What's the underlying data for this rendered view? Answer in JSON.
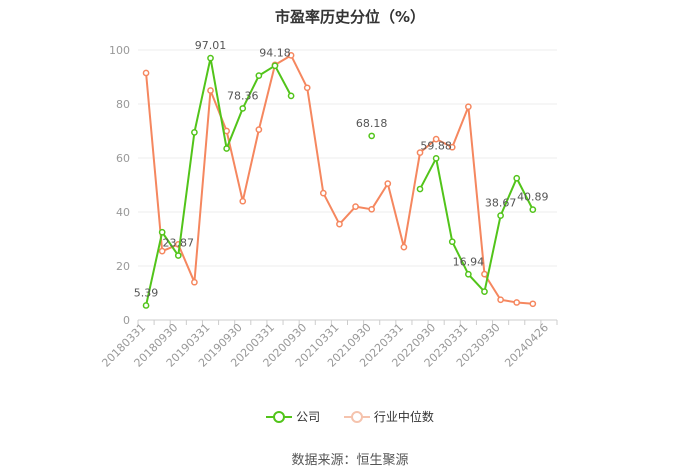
{
  "title": "市盈率历史分位（%）",
  "source": "数据来源：恒生聚源",
  "colors": {
    "company": "#52c41a",
    "industry": "#f5875f",
    "axis": "#999999",
    "grid": "#eeeeee"
  },
  "chart_data": {
    "type": "line",
    "title": "市盈率历史分位（%）",
    "xlabel": "",
    "ylabel": "",
    "ylim": [
      0,
      100
    ],
    "yticks": [
      0,
      20,
      40,
      60,
      80,
      100
    ],
    "grid": true,
    "legend_position": "bottom",
    "categories": [
      "20180331",
      "20180630",
      "20180930",
      "20181231",
      "20190331",
      "20190630",
      "20190930",
      "20191231",
      "20200331",
      "20200630",
      "20200930",
      "20201231",
      "20210331",
      "20210630",
      "20210930",
      "20211231",
      "20220331",
      "20220630",
      "20220930",
      "20221231",
      "20230331",
      "20230630",
      "20230930",
      "20231231",
      "20240331",
      "20240426"
    ],
    "xtick_labels": [
      "20180331",
      "20180930",
      "20190331",
      "20190930",
      "20200331",
      "20200930",
      "20210331",
      "20210930",
      "20220331",
      "20220930",
      "20230331",
      "20230930",
      "20240426"
    ],
    "series": [
      {
        "name": "公司",
        "color": "#52c41a",
        "values": [
          5.39,
          32.5,
          23.87,
          69.5,
          97.01,
          63.5,
          78.36,
          90.5,
          94.18,
          83.0,
          null,
          null,
          null,
          null,
          68.18,
          null,
          null,
          48.5,
          59.88,
          29.0,
          16.94,
          10.5,
          38.67,
          52.5,
          40.89,
          null
        ],
        "labels": {
          "0": "5.39",
          "2": "23.87",
          "4": "97.01",
          "6": "78.36",
          "8": "94.18",
          "14": "68.18",
          "18": "59.88",
          "20": "16.94",
          "22": "38.67",
          "24": "40.89"
        }
      },
      {
        "name": "行业中位数",
        "color": "#f5875f",
        "values": [
          91.5,
          25.5,
          28.0,
          14.0,
          85.0,
          70.0,
          44.0,
          70.5,
          94.5,
          98.0,
          86.0,
          47.0,
          35.5,
          42.0,
          41.0,
          50.5,
          27.0,
          62.0,
          67.0,
          64.0,
          79.0,
          17.0,
          7.5,
          6.5,
          6.0,
          null
        ]
      }
    ]
  }
}
